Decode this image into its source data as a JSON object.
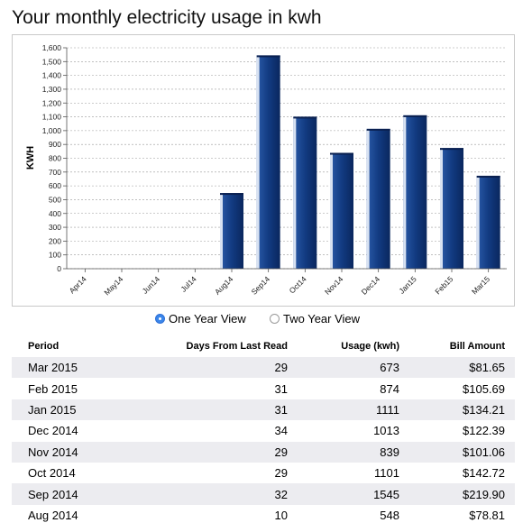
{
  "page": {
    "title": "Your monthly electricity usage in kwh"
  },
  "chart_data": {
    "type": "bar",
    "ylabel": "KWH",
    "ylim": [
      0,
      1600
    ],
    "ytick_step": 100,
    "grid": true,
    "categories": [
      "Apr14",
      "May14",
      "Jun14",
      "Jul14",
      "Aug14",
      "Sep14",
      "Oct14",
      "Nov14",
      "Dec14",
      "Jan15",
      "Feb15",
      "Mar15"
    ],
    "values": [
      0,
      0,
      0,
      0,
      548,
      1545,
      1101,
      839,
      1013,
      1111,
      874,
      673
    ],
    "ytick_labels": [
      "0",
      "100",
      "200",
      "300",
      "400",
      "500",
      "600",
      "700",
      "800",
      "900",
      "1,000",
      "1,100",
      "1,200",
      "1,300",
      "1,400",
      "1,500",
      "1,600"
    ],
    "colors": {
      "bar_dark": "#0b2d6e",
      "bar_mid": "#1d4a9a",
      "bar_highlight": "#d8e2f2",
      "grid": "#9a9a9a"
    }
  },
  "view_toggle": {
    "options": [
      {
        "label": "One Year View",
        "checked": true
      },
      {
        "label": "Two Year View",
        "checked": false
      }
    ]
  },
  "table": {
    "headers": {
      "period": "Period",
      "days": "Days From Last Read",
      "usage": "Usage (kwh)",
      "bill": "Bill Amount"
    },
    "rows": [
      {
        "period": "Mar 2015",
        "days": "29",
        "usage": "673",
        "bill": "$81.65"
      },
      {
        "period": "Feb 2015",
        "days": "31",
        "usage": "874",
        "bill": "$105.69"
      },
      {
        "period": "Jan 2015",
        "days": "31",
        "usage": "1111",
        "bill": "$134.21"
      },
      {
        "period": "Dec 2014",
        "days": "34",
        "usage": "1013",
        "bill": "$122.39"
      },
      {
        "period": "Nov 2014",
        "days": "29",
        "usage": "839",
        "bill": "$101.06"
      },
      {
        "period": "Oct 2014",
        "days": "29",
        "usage": "1101",
        "bill": "$142.72"
      },
      {
        "period": "Sep 2014",
        "days": "32",
        "usage": "1545",
        "bill": "$219.90"
      },
      {
        "period": "Aug 2014",
        "days": "10",
        "usage": "548",
        "bill": "$78.81"
      }
    ]
  }
}
